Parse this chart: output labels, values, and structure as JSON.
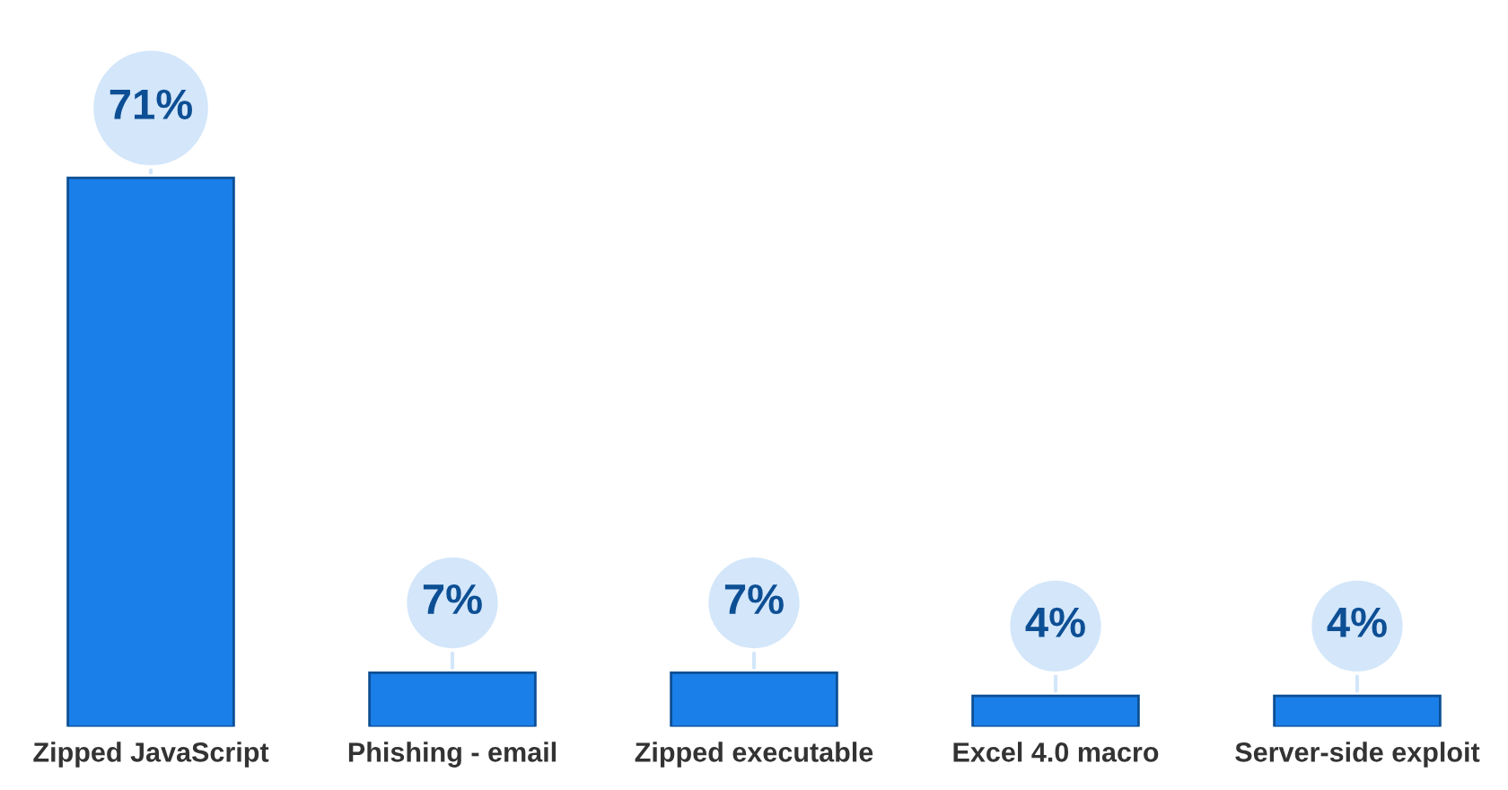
{
  "chart_data": {
    "type": "bar",
    "categories": [
      "Zipped JavaScript",
      "Phishing - email",
      "Zipped executable",
      "Excel 4.0 macro",
      "Server-side exploit"
    ],
    "values": [
      71,
      7,
      7,
      4,
      4
    ],
    "value_labels": [
      "71%",
      "7%",
      "7%",
      "4%",
      "4%"
    ],
    "color": "#1a7fe8",
    "grid": false,
    "legend": false
  }
}
